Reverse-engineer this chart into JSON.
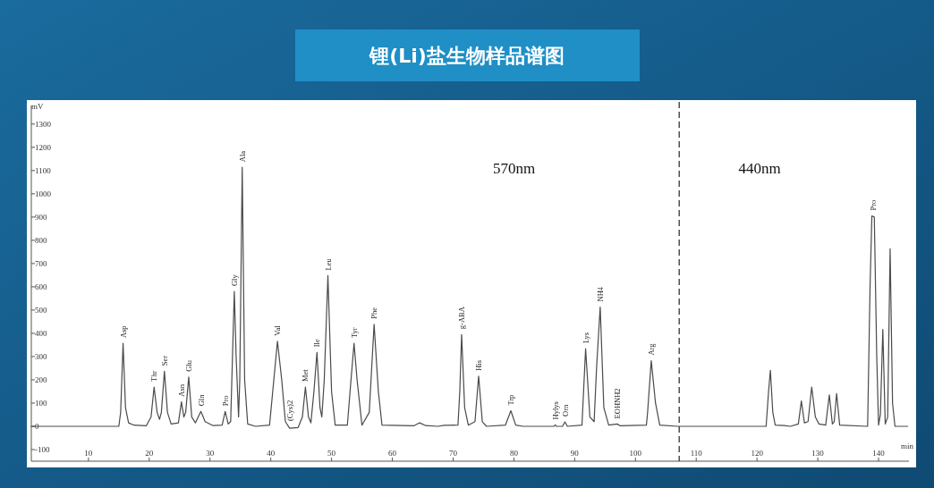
{
  "chart_data": {
    "type": "line",
    "title": "锂(Li)盐生物样品谱图",
    "xlabel": "min",
    "ylabel": "mV",
    "xlim": [
      0.6,
      145
    ],
    "ylim": [
      -150,
      1380
    ],
    "xticks": [
      10,
      20,
      30,
      40,
      50,
      60,
      70,
      80,
      90,
      100,
      110,
      120,
      130,
      140
    ],
    "yticks": [
      -100,
      0,
      100,
      200,
      300,
      400,
      500,
      600,
      700,
      800,
      900,
      1000,
      1100,
      1200,
      1300
    ],
    "color": "#4a4a4a",
    "x": [
      0.6,
      15.0,
      15.3,
      15.7,
      16.1,
      16.6,
      17.5,
      19.5,
      20.3,
      20.8,
      21.3,
      21.7,
      22.0,
      22.5,
      23.0,
      23.6,
      24.8,
      25.3,
      25.7,
      26.0,
      26.5,
      27.0,
      27.6,
      28.5,
      29.2,
      30.5,
      32.0,
      32.5,
      33.0,
      33.4,
      33.7,
      34.0,
      34.3,
      34.7,
      34.9,
      35.3,
      35.7,
      36.2,
      37.5,
      39.8,
      40.5,
      41.1,
      41.8,
      42.4,
      43.1,
      44.5,
      45.2,
      45.7,
      46.2,
      46.6,
      47.1,
      47.6,
      48.1,
      48.4,
      48.8,
      49.4,
      50.0,
      50.6,
      52.6,
      53.2,
      53.7,
      54.2,
      55.0,
      56.2,
      57.0,
      57.7,
      58.3,
      63.5,
      64.5,
      65.5,
      67.5,
      68.5,
      70.8,
      71.1,
      71.4,
      71.9,
      72.5,
      73.6,
      74.2,
      74.8,
      75.5,
      78.6,
      79.5,
      80.3,
      81.5,
      86.6,
      86.8,
      87.0,
      88.0,
      88.4,
      88.8,
      91.2,
      91.8,
      92.5,
      93.2,
      93.6,
      94.2,
      94.8,
      95.6,
      97.0,
      97.5,
      101.8,
      102.0,
      102.6,
      103.3,
      104.0,
      107.0,
      121.5,
      121.9,
      122.2,
      122.6,
      123.0,
      124.5,
      125.5,
      126.8,
      127.3,
      127.8,
      128.4,
      129.0,
      129.6,
      130.2,
      131.3,
      131.9,
      132.4,
      132.7,
      133.1,
      133.6,
      138.2,
      138.6,
      138.9,
      139.3,
      139.7,
      140.0,
      140.3,
      140.7,
      141.1,
      141.5,
      141.9,
      142.3,
      142.7,
      144.8
    ],
    "values": [
      0,
      0,
      60,
      357,
      80,
      15,
      5,
      2,
      40,
      169,
      60,
      30,
      60,
      237,
      60,
      10,
      15,
      105,
      40,
      60,
      212,
      40,
      15,
      64,
      20,
      3,
      5,
      64,
      10,
      20,
      300,
      580,
      300,
      40,
      200,
      1114,
      200,
      10,
      0,
      5,
      200,
      366,
      200,
      20,
      -8,
      -5,
      40,
      169,
      40,
      15,
      150,
      318,
      80,
      40,
      200,
      648,
      150,
      5,
      5,
      200,
      357,
      200,
      5,
      60,
      439,
      150,
      5,
      2,
      15,
      3,
      0,
      4,
      5,
      150,
      395,
      80,
      5,
      20,
      216,
      20,
      0,
      5,
      67,
      5,
      0,
      0,
      6,
      0,
      0,
      19,
      0,
      5,
      334,
      40,
      20,
      250,
      513,
      80,
      5,
      10,
      2,
      5,
      60,
      282,
      100,
      5,
      0,
      0,
      150,
      241,
      60,
      5,
      3,
      0,
      10,
      109,
      15,
      20,
      169,
      40,
      10,
      5,
      135,
      10,
      20,
      141,
      5,
      0,
      600,
      905,
      900,
      300,
      5,
      50,
      417,
      10,
      40,
      764,
      100,
      0,
      0
    ],
    "ref_lines": [
      {
        "axis": "x",
        "value": 107.2,
        "line_style": "dashed",
        "color": "#333333"
      }
    ],
    "annotations": [
      "570nm",
      "440nm",
      {
        "text": "Asp",
        "x": 15.7,
        "y": 357
      },
      {
        "text": "Thr",
        "x": 20.8,
        "y": 169
      },
      {
        "text": "Ser",
        "x": 22.5,
        "y": 237
      },
      {
        "text": "Asn",
        "x": 25.3,
        "y": 105
      },
      {
        "text": "Glu",
        "x": 26.5,
        "y": 212
      },
      {
        "text": "Gln",
        "x": 28.5,
        "y": 64
      },
      {
        "text": "Pro",
        "x": 32.5,
        "y": 64
      },
      {
        "text": "Gly",
        "x": 34.0,
        "y": 580
      },
      {
        "text": "Ala",
        "x": 35.3,
        "y": 1114
      },
      {
        "text": "Val",
        "x": 41.1,
        "y": 366
      },
      {
        "text": "(Cys)2",
        "x": 43.1,
        "y": 0
      },
      {
        "text": "Met",
        "x": 45.7,
        "y": 169
      },
      {
        "text": "Ile",
        "x": 47.6,
        "y": 318
      },
      {
        "text": "Leu",
        "x": 49.4,
        "y": 648
      },
      {
        "text": "Tyr",
        "x": 53.7,
        "y": 357
      },
      {
        "text": "Phe",
        "x": 57.0,
        "y": 439
      },
      {
        "text": "g-ABA",
        "x": 71.4,
        "y": 395
      },
      {
        "text": "His",
        "x": 74.2,
        "y": 216
      },
      {
        "text": "Trp",
        "x": 79.5,
        "y": 67
      },
      {
        "text": "Hylys",
        "x": 86.8,
        "y": 6
      },
      {
        "text": "Orn",
        "x": 88.4,
        "y": 19
      },
      {
        "text": "Lys",
        "x": 91.8,
        "y": 334
      },
      {
        "text": "NH4",
        "x": 94.2,
        "y": 513
      },
      {
        "text": "EOHNH2",
        "x": 97.0,
        "y": 10
      },
      {
        "text": "Arg",
        "x": 102.6,
        "y": 282
      },
      {
        "text": "Pro",
        "x": 139.1,
        "y": 905
      }
    ]
  }
}
